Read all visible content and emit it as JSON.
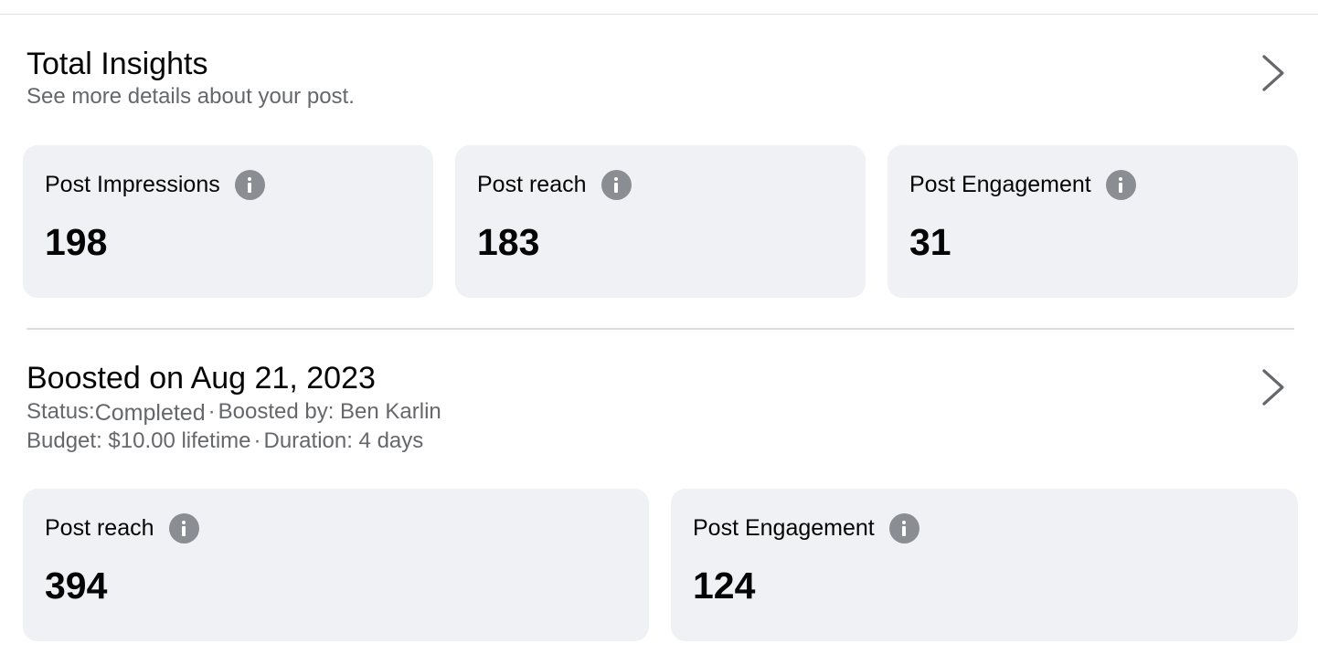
{
  "total_insights": {
    "title": "Total Insights",
    "subtitle": "See more details about your post.",
    "cards": [
      {
        "label": "Post Impressions",
        "value": "198"
      },
      {
        "label": "Post reach",
        "value": "183"
      },
      {
        "label": "Post Engagement",
        "value": "31"
      }
    ]
  },
  "boost": {
    "title": "Boosted on Aug 21, 2023",
    "status_label": "Status:",
    "status_value": "Completed",
    "separator": "·",
    "boosted_by": "Boosted by: Ben Karlin",
    "budget": "Budget: $10.00 lifetime",
    "duration": "Duration: 4 days",
    "cards": [
      {
        "label": "Post reach",
        "value": "394"
      },
      {
        "label": "Post Engagement",
        "value": "124"
      }
    ]
  },
  "icons": {
    "info": "info-icon",
    "chevron": "chevron-right-icon"
  },
  "colors": {
    "card_bg": "#f0f1f5",
    "secondary_text": "#65676b",
    "icon_gray": "#8a8d91"
  }
}
